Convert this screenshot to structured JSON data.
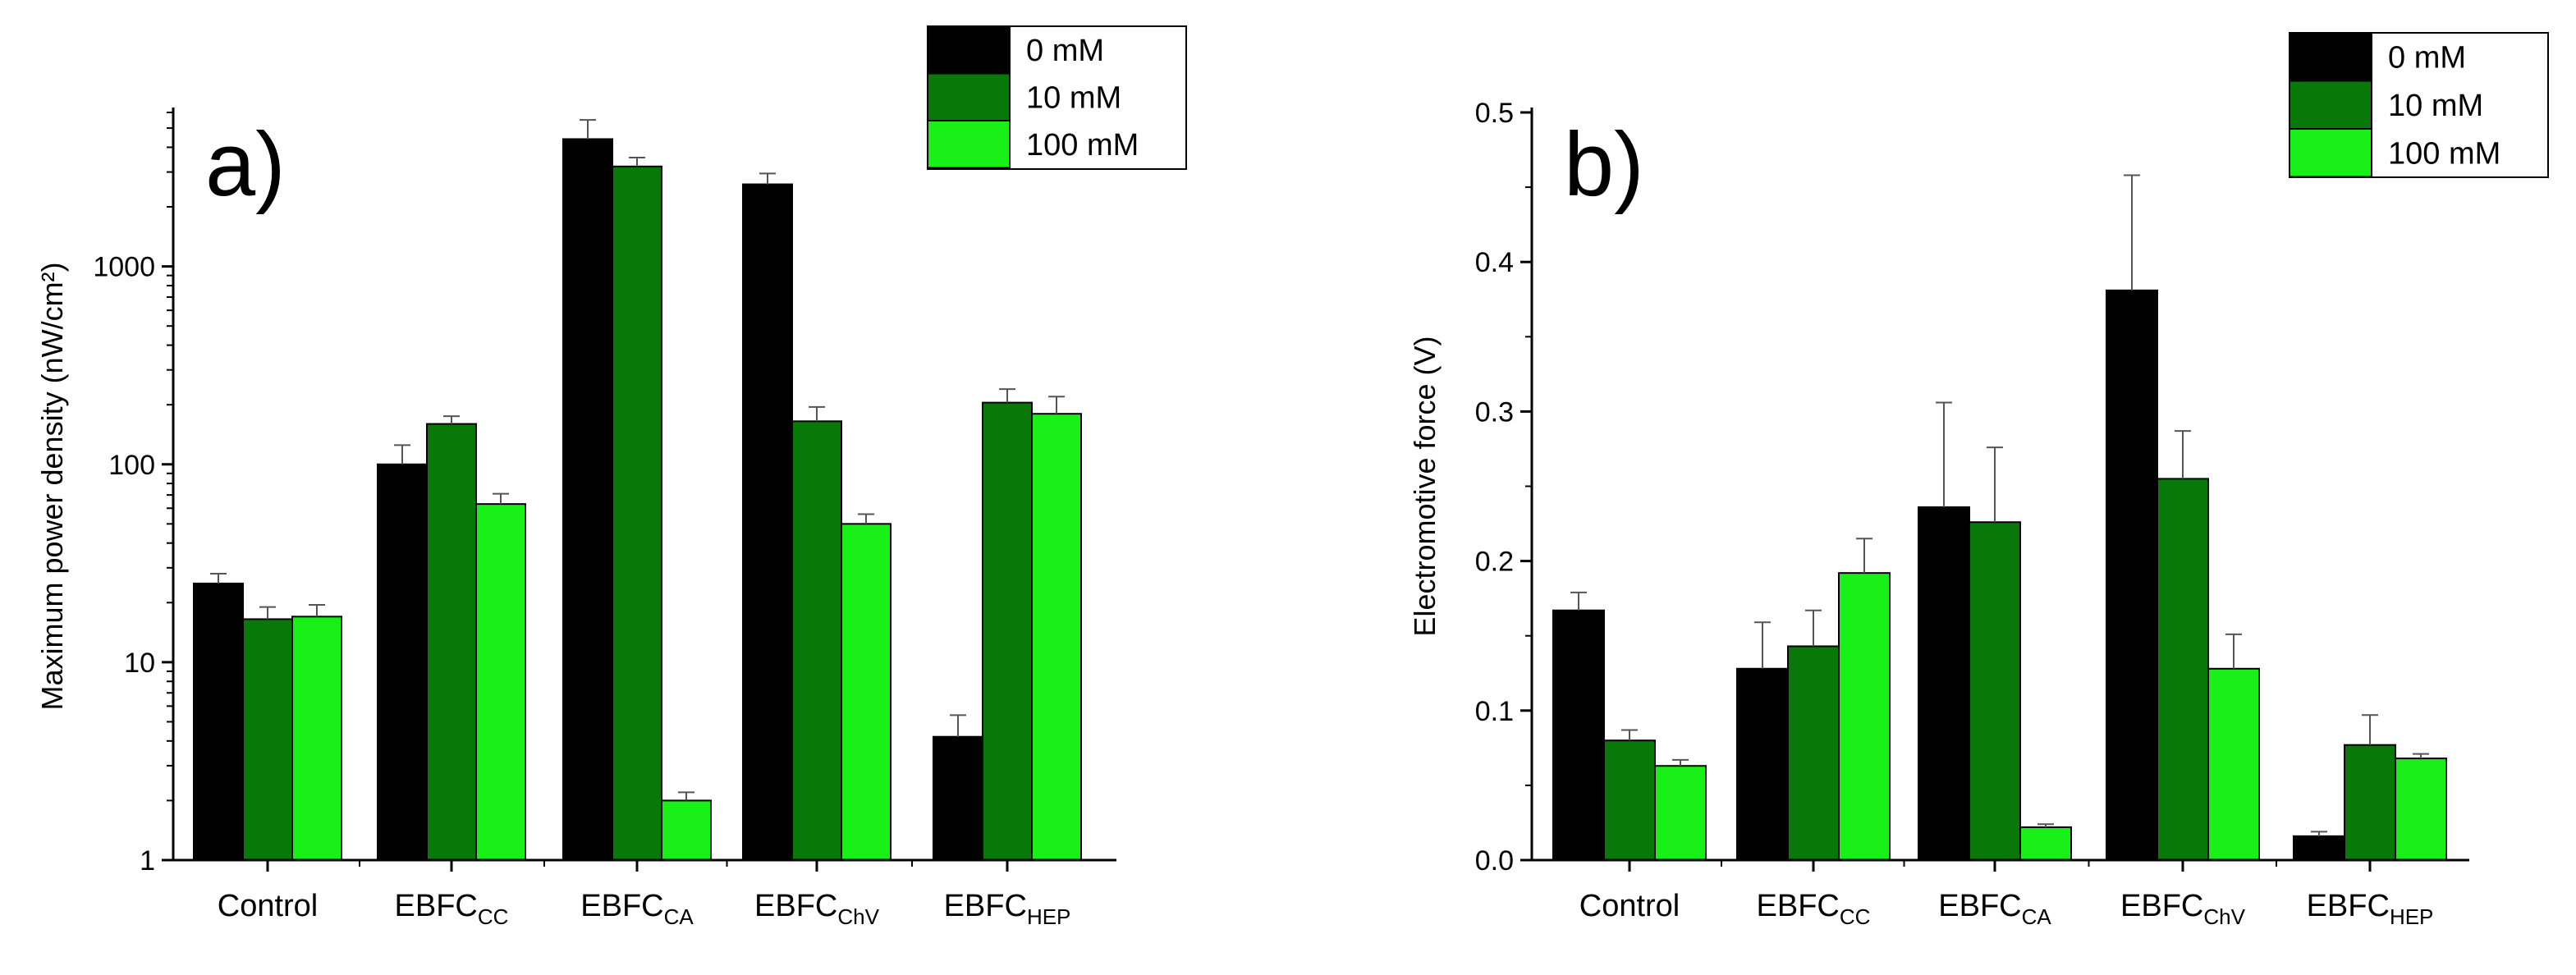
{
  "colors": {
    "s0": "#000000",
    "s1": "#087808",
    "s2": "#18f018",
    "axis": "#000000"
  },
  "chart_data": [
    {
      "type": "bar",
      "panel_label": "a)",
      "ylabel": "Maximum power density (nW/cm²)",
      "yscale": "log",
      "ylim": [
        1,
        6000
      ],
      "yticks": [
        1,
        10,
        100,
        1000
      ],
      "ytick_labels": [
        "1",
        "10",
        "100",
        "1000"
      ],
      "categories": [
        {
          "main": "Control",
          "sub": ""
        },
        {
          "main": "EBFC",
          "sub": "CC"
        },
        {
          "main": "EBFC",
          "sub": "CA"
        },
        {
          "main": "EBFC",
          "sub": "ChV"
        },
        {
          "main": "EBFC",
          "sub": "HEP"
        }
      ],
      "series": [
        {
          "name": "0 mM",
          "values": [
            25,
            100,
            4400,
            2600,
            4.2
          ],
          "errors": [
            3,
            25,
            1100,
            350,
            1.2
          ]
        },
        {
          "name": "10 mM",
          "values": [
            16.5,
            160,
            3200,
            165,
            205
          ],
          "errors": [
            2.5,
            15,
            350,
            30,
            35
          ]
        },
        {
          "name": "100 mM",
          "values": [
            17,
            63,
            2.0,
            50,
            180
          ],
          "errors": [
            2.5,
            8,
            0.2,
            6,
            40
          ]
        }
      ],
      "legend": "top-right"
    },
    {
      "type": "bar",
      "panel_label": "b)",
      "ylabel": "Electromotive force (V)",
      "yscale": "linear",
      "ylim": [
        0,
        0.5
      ],
      "yticks": [
        0,
        0.1,
        0.2,
        0.3,
        0.4,
        0.5
      ],
      "ytick_labels": [
        "0.0",
        "0.1",
        "0.2",
        "0.3",
        "0.4",
        "0.5"
      ],
      "categories": [
        {
          "main": "Control",
          "sub": ""
        },
        {
          "main": "EBFC",
          "sub": "CC"
        },
        {
          "main": "EBFC",
          "sub": "CA"
        },
        {
          "main": "EBFC",
          "sub": "ChV"
        },
        {
          "main": "EBFC",
          "sub": "HEP"
        }
      ],
      "series": [
        {
          "name": "0 mM",
          "values": [
            0.167,
            0.128,
            0.236,
            0.381,
            0.016
          ],
          "errors": [
            0.012,
            0.031,
            0.07,
            0.077,
            0.003
          ]
        },
        {
          "name": "10 mM",
          "values": [
            0.08,
            0.143,
            0.226,
            0.255,
            0.077
          ],
          "errors": [
            0.007,
            0.024,
            0.05,
            0.032,
            0.02
          ]
        },
        {
          "name": "100 mM",
          "values": [
            0.063,
            0.192,
            0.022,
            0.128,
            0.068
          ],
          "errors": [
            0.004,
            0.023,
            0.002,
            0.023,
            0.003
          ]
        }
      ],
      "legend": "top-right"
    }
  ]
}
